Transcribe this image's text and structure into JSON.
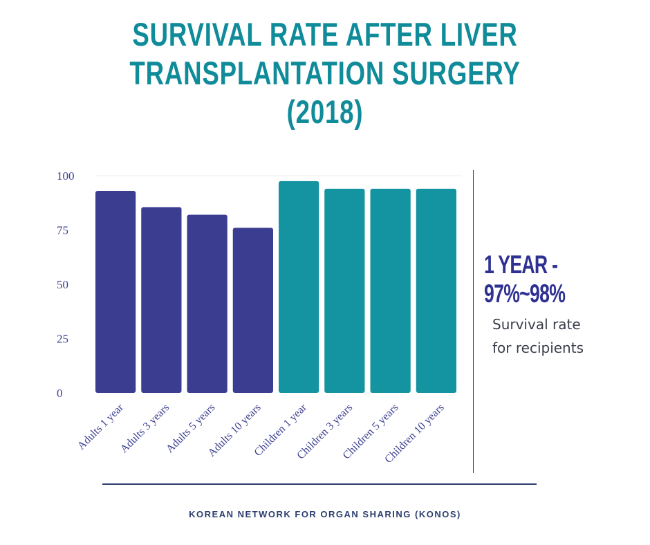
{
  "title_lines": [
    "SURVIVAL RATE AFTER LIVER",
    "TRANSPLANTATION SURGERY",
    "(2018)"
  ],
  "highlight": {
    "line1": "1 YEAR -",
    "line2": "97%~98%"
  },
  "note": {
    "line1": "Survival rate",
    "line2": "for recipients"
  },
  "source": "KOREAN NETWORK FOR ORGAN SHARING (KONOS)",
  "colors": {
    "title": "#0f8b99",
    "adults": "#3b3d91",
    "children": "#1493a0",
    "highlight": "#2e3192"
  },
  "chart_data": {
    "type": "bar",
    "categories": [
      "Adults 1 year",
      "Adults 3 years",
      "Adults 5 years",
      "Adults 10 years",
      "Children  1 year",
      "Children 3 years",
      "Children 5 years",
      "Children 10 years"
    ],
    "values": [
      93,
      85.5,
      82,
      76,
      97.5,
      94,
      94,
      94
    ],
    "groups": [
      "adults",
      "adults",
      "adults",
      "adults",
      "children",
      "children",
      "children",
      "children"
    ],
    "yticks": [
      0,
      25,
      50,
      75,
      100
    ],
    "ylim": [
      0,
      100
    ],
    "title": "SURVIVAL RATE AFTER LIVER TRANSPLANTATION SURGERY (2018)",
    "xlabel": "",
    "ylabel": "",
    "grid": false
  }
}
